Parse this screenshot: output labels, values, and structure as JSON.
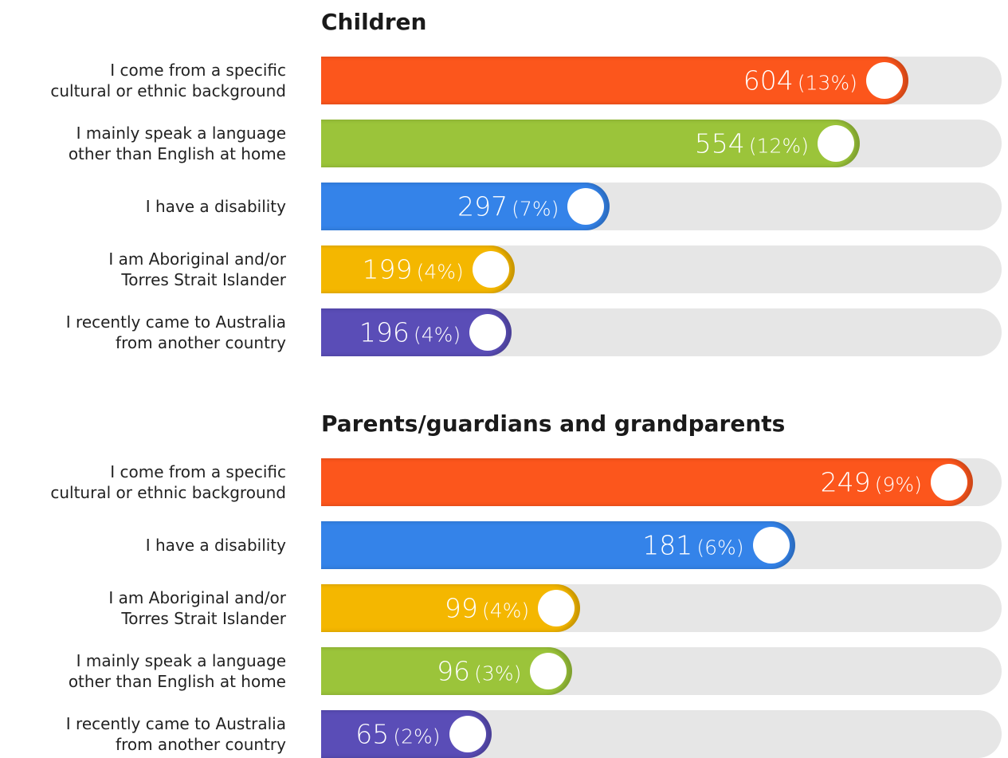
{
  "chart_data": [
    {
      "type": "bar",
      "title": "Children",
      "categories": [
        "I come from a specific\ncultural or ethnic background",
        "I mainly speak a language\nother than English at home",
        "I have a disability",
        "I am Aboriginal and/or\nTorres Strait Islander",
        "I recently came to Australia\nfrom another country"
      ],
      "values": [
        604,
        554,
        297,
        199,
        196
      ],
      "share_labels": [
        "(13%)",
        "(12%)",
        "(7%)",
        "(4%)",
        "(4%)"
      ],
      "colors": [
        "#fc561c",
        "#9bc43a",
        "#3483e9",
        "#f4b700",
        "#5a4db7"
      ],
      "xlim": [
        0,
        700
      ]
    },
    {
      "type": "bar",
      "title": "Parents/guardians and grandparents",
      "categories": [
        "I come from a specific\ncultural or ethnic background",
        "I have a disability",
        "I am Aboriginal and/or\nTorres Strait Islander",
        "I mainly speak a language\nother than English at home",
        "I recently came to Australia\nfrom another country"
      ],
      "values": [
        249,
        181,
        99,
        96,
        65
      ],
      "share_labels": [
        "(9%)",
        "(6%)",
        "(4%)",
        "(3%)",
        "(2%)"
      ],
      "colors": [
        "#fc561c",
        "#3483e9",
        "#f4b700",
        "#9bc43a",
        "#5a4db7"
      ],
      "xlim": [
        0,
        260
      ]
    }
  ]
}
